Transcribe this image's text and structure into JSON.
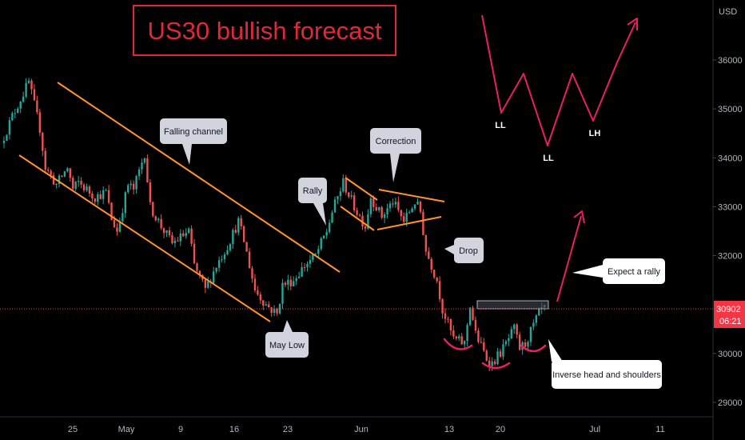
{
  "chart_data": {
    "type": "candlestick",
    "title": "US30 bullish forecast",
    "currency_label": "USD",
    "y_ticks": [
      29000,
      30000,
      31000,
      32000,
      33000,
      34000,
      35000,
      36000
    ],
    "y_tick_labels": [
      "29000",
      "30000",
      "",
      "32000",
      "33000",
      "34000",
      "35000",
      "36000"
    ],
    "ylim": [
      28600,
      37100
    ],
    "x_ticks": [
      "25",
      "May",
      "9",
      "16",
      "23",
      "Jun",
      "13",
      "20",
      "Jul",
      "11"
    ],
    "current_price": "30902",
    "countdown": "06:21",
    "price_path": [
      {
        "d": 0,
        "p": 34300
      },
      {
        "d": 2,
        "p": 34850
      },
      {
        "d": 5,
        "p": 35550
      },
      {
        "d": 7,
        "p": 34600
      },
      {
        "d": 8,
        "p": 33800
      },
      {
        "d": 10,
        "p": 33450
      },
      {
        "d": 12,
        "p": 33800
      },
      {
        "d": 13,
        "p": 33350
      },
      {
        "d": 14,
        "p": 33500
      },
      {
        "d": 17,
        "p": 33200
      },
      {
        "d": 19,
        "p": 33300
      },
      {
        "d": 20,
        "p": 32750
      },
      {
        "d": 21,
        "p": 32500
      },
      {
        "d": 23,
        "p": 33450
      },
      {
        "d": 24,
        "p": 33350
      },
      {
        "d": 26,
        "p": 34100
      },
      {
        "d": 27,
        "p": 33000
      },
      {
        "d": 29,
        "p": 32600
      },
      {
        "d": 31,
        "p": 32250
      },
      {
        "d": 34,
        "p": 32500
      },
      {
        "d": 35,
        "p": 31800
      },
      {
        "d": 37,
        "p": 31300
      },
      {
        "d": 39,
        "p": 31800
      },
      {
        "d": 41,
        "p": 32200
      },
      {
        "d": 43,
        "p": 32700
      },
      {
        "d": 44,
        "p": 32300
      },
      {
        "d": 46,
        "p": 31300
      },
      {
        "d": 48,
        "p": 31000
      },
      {
        "d": 50,
        "p": 30800
      },
      {
        "d": 51,
        "p": 31400
      },
      {
        "d": 53,
        "p": 31500
      },
      {
        "d": 55,
        "p": 31800
      },
      {
        "d": 57,
        "p": 32000
      },
      {
        "d": 59,
        "p": 32500
      },
      {
        "d": 60,
        "p": 32900
      },
      {
        "d": 62,
        "p": 33500
      },
      {
        "d": 64,
        "p": 33000
      },
      {
        "d": 66,
        "p": 32600
      },
      {
        "d": 67,
        "p": 33200
      },
      {
        "d": 69,
        "p": 32800
      },
      {
        "d": 71,
        "p": 33100
      },
      {
        "d": 73,
        "p": 32700
      },
      {
        "d": 75,
        "p": 33100
      },
      {
        "d": 76,
        "p": 32900
      },
      {
        "d": 77,
        "p": 32100
      },
      {
        "d": 79,
        "p": 31500
      },
      {
        "d": 80,
        "p": 30900
      },
      {
        "d": 81,
        "p": 30600
      },
      {
        "d": 82,
        "p": 30300
      },
      {
        "d": 84,
        "p": 30200
      },
      {
        "d": 85,
        "p": 31000
      },
      {
        "d": 86,
        "p": 30400
      },
      {
        "d": 88,
        "p": 29900
      },
      {
        "d": 89,
        "p": 29800
      },
      {
        "d": 91,
        "p": 30100
      },
      {
        "d": 93,
        "p": 30500
      },
      {
        "d": 94,
        "p": 30100
      },
      {
        "d": 95,
        "p": 30200
      },
      {
        "d": 97,
        "p": 30700
      },
      {
        "d": 98,
        "p": 30900
      }
    ],
    "annotations": {
      "falling_channel": "Falling channel",
      "may_low": "May Low",
      "rally": "Rally",
      "correction": "Correction",
      "drop": "Drop",
      "expect_rally": "Expect a rally",
      "inverse_hs": "Inverse head and shoulders",
      "wave_labels": [
        "LL",
        "LL",
        "LH"
      ]
    },
    "colors": {
      "up": "#26a69a",
      "down": "#ef5350",
      "channel": "#ff9330",
      "arrow": "#e91e63",
      "title": "#e0283a",
      "price_tag": "#f23645"
    }
  }
}
